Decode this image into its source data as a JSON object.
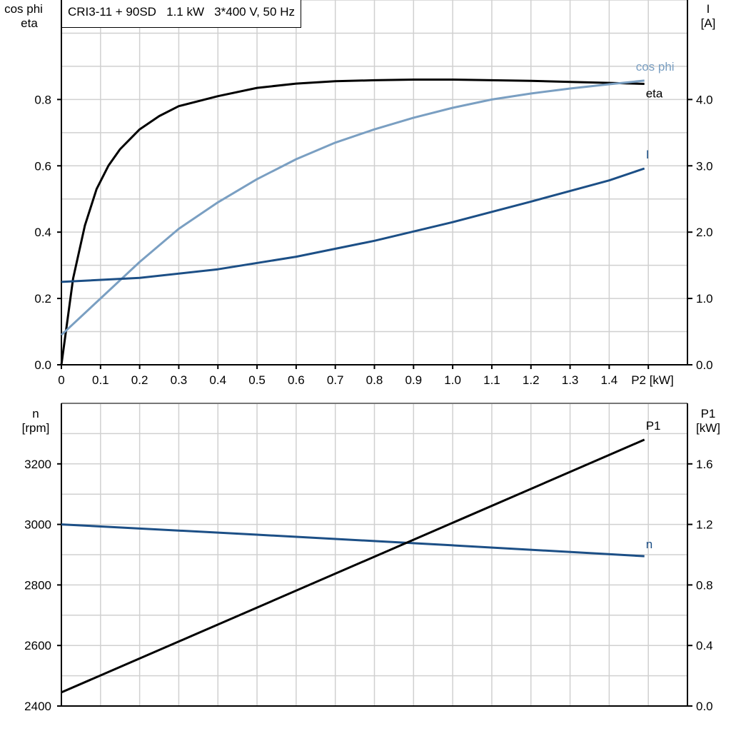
{
  "chart_data": [
    {
      "type": "line",
      "title": "CRI3-11 + 90SD   1.1 kW   3*400 V, 50 Hz",
      "xlabel": "P2 [kW]",
      "ylabel_left": [
        "cos phi",
        "eta"
      ],
      "ylabel_right": [
        "I",
        "[A]"
      ],
      "xlim": [
        0,
        1.6
      ],
      "ylim_left": [
        0,
        1.1
      ],
      "ylim_right": [
        0,
        5.5
      ],
      "x_ticks": [
        "0",
        "0.1",
        "0.2",
        "0.3",
        "0.4",
        "0.5",
        "0.6",
        "0.7",
        "0.8",
        "0.9",
        "1.0",
        "1.1",
        "1.2",
        "1.3",
        "1.4"
      ],
      "y_left_ticks": [
        "0.0",
        "0.2",
        "0.4",
        "0.6",
        "0.8"
      ],
      "y_right_ticks": [
        "0.0",
        "1.0",
        "2.0",
        "3.0",
        "4.0"
      ],
      "grid": true,
      "series": [
        {
          "name": "eta",
          "axis": "left",
          "color": "#000000",
          "x": [
            0,
            0.03,
            0.06,
            0.09,
            0.12,
            0.15,
            0.2,
            0.25,
            0.3,
            0.4,
            0.5,
            0.6,
            0.7,
            0.8,
            0.9,
            1.0,
            1.1,
            1.2,
            1.3,
            1.4,
            1.49
          ],
          "y": [
            0,
            0.26,
            0.42,
            0.53,
            0.6,
            0.65,
            0.71,
            0.75,
            0.78,
            0.81,
            0.835,
            0.848,
            0.855,
            0.858,
            0.86,
            0.86,
            0.858,
            0.856,
            0.853,
            0.85,
            0.847
          ]
        },
        {
          "name": "cos phi",
          "axis": "left",
          "color": "#7a9fc2",
          "x": [
            0,
            0.1,
            0.2,
            0.3,
            0.4,
            0.5,
            0.6,
            0.7,
            0.8,
            0.9,
            1.0,
            1.1,
            1.2,
            1.3,
            1.4,
            1.49
          ],
          "y": [
            0.09,
            0.2,
            0.31,
            0.41,
            0.49,
            0.56,
            0.62,
            0.67,
            0.71,
            0.745,
            0.775,
            0.8,
            0.818,
            0.833,
            0.846,
            0.857
          ]
        },
        {
          "name": "I",
          "axis": "right",
          "color": "#1c4f86",
          "x": [
            0,
            0.2,
            0.4,
            0.6,
            0.8,
            1.0,
            1.2,
            1.4,
            1.49
          ],
          "y": [
            1.25,
            1.31,
            1.44,
            1.63,
            1.87,
            2.15,
            2.46,
            2.78,
            2.96
          ]
        }
      ]
    },
    {
      "type": "line",
      "ylabel_left": [
        "n",
        "[rpm]"
      ],
      "ylabel_right": [
        "P1",
        "[kW]"
      ],
      "xlim": [
        0,
        1.6
      ],
      "ylim_left": [
        2400,
        3400
      ],
      "ylim_right": [
        0,
        2.0
      ],
      "y_left_ticks": [
        "2400",
        "2600",
        "2800",
        "3000",
        "3200"
      ],
      "y_right_ticks": [
        "0.0",
        "0.4",
        "0.8",
        "1.2",
        "1.6"
      ],
      "grid": true,
      "series": [
        {
          "name": "n",
          "axis": "left",
          "color": "#1c4f86",
          "x": [
            0,
            0.5,
            1.0,
            1.49
          ],
          "y": [
            3000,
            2966,
            2931,
            2895
          ]
        },
        {
          "name": "P1",
          "axis": "right",
          "color": "#000000",
          "x": [
            0,
            1.49
          ],
          "y": [
            0.09,
            1.76
          ]
        }
      ]
    }
  ]
}
